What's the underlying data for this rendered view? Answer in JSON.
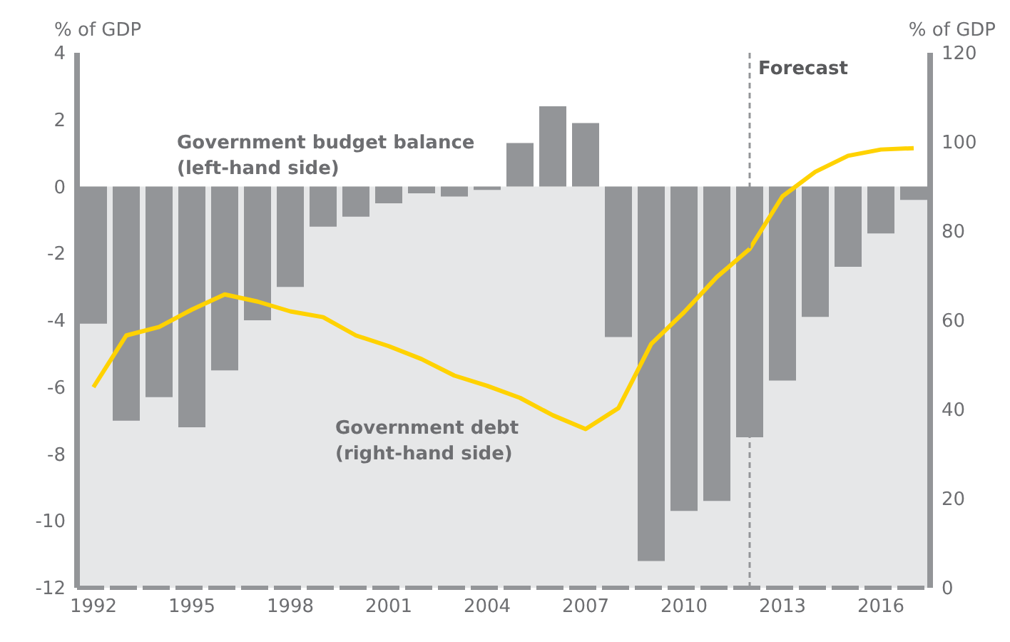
{
  "chart_data": {
    "type": "bar",
    "x": [
      1992,
      1993,
      1994,
      1995,
      1996,
      1997,
      1998,
      1999,
      2000,
      2001,
      2002,
      2003,
      2004,
      2005,
      2006,
      2007,
      2008,
      2009,
      2010,
      2011,
      2012,
      2013,
      2014,
      2015,
      2016,
      2017
    ],
    "xlim": [
      1991.5,
      2017.5
    ],
    "xticks": [
      1992,
      1995,
      1998,
      2001,
      2004,
      2007,
      2010,
      2013,
      2016
    ],
    "ylabel": "% of GDP",
    "y2label": "% of GDP",
    "ylim": [
      -12,
      4
    ],
    "yticks": [
      -12,
      -10,
      -8,
      -6,
      -4,
      -2,
      0,
      2,
      4
    ],
    "y2lim": [
      0,
      120
    ],
    "y2ticks": [
      0,
      20,
      40,
      60,
      80,
      100,
      120
    ],
    "series": [
      {
        "name": "Government budget balance (left-hand side)",
        "color": "#939598",
        "values": [
          -4.1,
          -7.0,
          -6.3,
          -7.2,
          -5.5,
          -4.0,
          -3.0,
          -1.2,
          -0.9,
          -0.5,
          -0.2,
          -0.3,
          -0.1,
          1.3,
          2.4,
          1.9,
          -4.5,
          -11.2,
          -9.7,
          -9.4,
          -7.5,
          -5.8,
          -3.9,
          -2.4,
          -1.4,
          -0.4
        ]
      },
      {
        "name": "Government debt (right-hand side)",
        "type": "line",
        "axis": "y2",
        "color": "#ffd200",
        "values": [
          45,
          56.6,
          58.5,
          62.4,
          65.8,
          64.2,
          62,
          60.7,
          56.6,
          54.2,
          51.3,
          47.6,
          45.3,
          42.6,
          38.7,
          35.6,
          40.3,
          54.7,
          61.8,
          69.7,
          76,
          87.8,
          93.3,
          96.9,
          98.3,
          98.6
        ]
      }
    ],
    "ref_lines": [
      {
        "axis": "x",
        "value": 2012,
        "label": "Forecast",
        "color": "#939598",
        "line_style": "dashed"
      }
    ],
    "bands": [
      {
        "axis": "y",
        "from": -12,
        "to": 0,
        "color": "#e6e7e8"
      }
    ],
    "grid": false,
    "legend": false,
    "marker": "none"
  }
}
